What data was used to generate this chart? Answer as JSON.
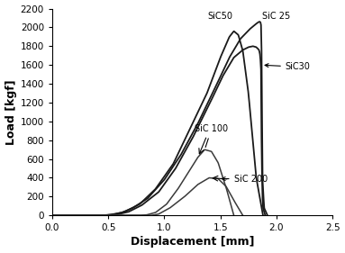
{
  "title": "",
  "xlabel": "Displacement [mm]",
  "ylabel": "Load [kgf]",
  "xlim": [
    0.0,
    2.5
  ],
  "ylim": [
    0,
    2200
  ],
  "xticks": [
    0.0,
    0.5,
    1.0,
    1.5,
    2.0,
    2.5
  ],
  "yticks": [
    0,
    200,
    400,
    600,
    800,
    1000,
    1200,
    1400,
    1600,
    1800,
    2000,
    2200
  ],
  "curves": {
    "SiC25": {
      "color": "#1a1a1a",
      "lw": 1.3,
      "x": [
        0.0,
        0.4,
        0.46,
        0.52,
        0.62,
        0.72,
        0.85,
        1.0,
        1.15,
        1.3,
        1.45,
        1.58,
        1.68,
        1.76,
        1.82,
        1.845,
        1.855,
        1.862,
        1.868,
        1.875,
        1.89,
        1.92
      ],
      "y": [
        0,
        0,
        2,
        8,
        30,
        80,
        180,
        380,
        650,
        980,
        1350,
        1680,
        1880,
        1980,
        2040,
        2060,
        2060,
        2040,
        1700,
        400,
        80,
        0
      ]
    },
    "SiC50": {
      "color": "#1a1a1a",
      "lw": 1.3,
      "x": [
        0.0,
        0.42,
        0.48,
        0.55,
        0.65,
        0.78,
        0.92,
        1.08,
        1.22,
        1.38,
        1.5,
        1.58,
        1.62,
        1.66,
        1.7,
        1.75,
        1.82,
        1.88
      ],
      "y": [
        0,
        0,
        2,
        10,
        40,
        120,
        280,
        550,
        900,
        1300,
        1680,
        1900,
        1960,
        1920,
        1750,
        1300,
        400,
        0
      ]
    },
    "SiC30": {
      "color": "#1a1a1a",
      "lw": 1.3,
      "x": [
        0.0,
        0.44,
        0.5,
        0.58,
        0.68,
        0.8,
        0.95,
        1.1,
        1.25,
        1.4,
        1.52,
        1.62,
        1.7,
        1.75,
        1.79,
        1.82,
        1.845,
        1.855,
        1.862,
        1.868,
        1.875,
        1.88,
        1.9
      ],
      "y": [
        0,
        0,
        2,
        10,
        38,
        110,
        250,
        500,
        820,
        1180,
        1480,
        1680,
        1760,
        1790,
        1800,
        1790,
        1760,
        1700,
        1550,
        600,
        200,
        80,
        0
      ]
    },
    "SiC100": {
      "color": "#3a3a3a",
      "lw": 1.1,
      "x": [
        0.0,
        0.78,
        0.84,
        0.92,
        1.02,
        1.12,
        1.22,
        1.3,
        1.36,
        1.42,
        1.48,
        1.55,
        1.62
      ],
      "y": [
        0,
        0,
        5,
        30,
        120,
        280,
        470,
        620,
        700,
        680,
        560,
        300,
        0
      ]
    },
    "SiC200": {
      "color": "#3a3a3a",
      "lw": 1.1,
      "x": [
        0.0,
        0.4,
        0.88,
        0.9,
        0.95,
        1.05,
        1.18,
        1.3,
        1.4,
        1.48,
        1.55,
        1.62,
        1.7
      ],
      "y": [
        0,
        0,
        0,
        3,
        15,
        80,
        200,
        330,
        400,
        390,
        310,
        160,
        0
      ]
    }
  },
  "background_color": "#ffffff"
}
